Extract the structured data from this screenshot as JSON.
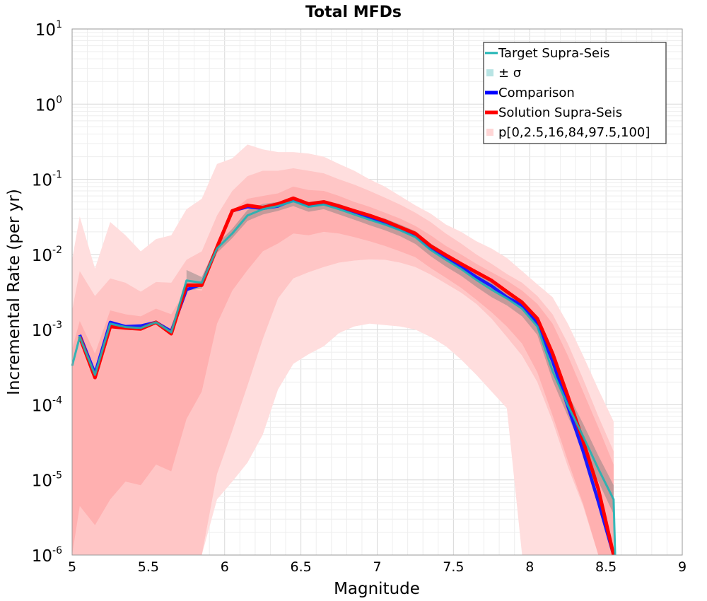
{
  "chart_data": {
    "type": "line",
    "title": "Total MFDs",
    "xlabel": "Magnitude",
    "ylabel": "Incremental Rate (per yr)",
    "xlim": [
      5,
      9
    ],
    "ylim_log10": [
      -6,
      1
    ],
    "y_scale": "log",
    "x_ticks": [
      "5",
      "5.5",
      "6",
      "6.5",
      "7",
      "7.5",
      "8",
      "8.5",
      "9"
    ],
    "y_tick_base": "10",
    "y_tick_exponents": [
      "1",
      "0",
      "-1",
      "-2",
      "-3",
      "-4",
      "-5",
      "-6"
    ],
    "grid": true,
    "legend_position": "top-right",
    "legend": [
      {
        "label": "Target Supra-Seis",
        "style": "line",
        "color": "#1fb4b4"
      },
      {
        "label": "± σ",
        "style": "band",
        "color": "#b8e4e4"
      },
      {
        "label": "Comparison",
        "style": "line",
        "color": "#0000ff"
      },
      {
        "label": "Solution Supra-Seis",
        "style": "line",
        "color": "#ff0000"
      },
      {
        "label": "p[0,2.5,16,84,97.5,100]",
        "style": "band",
        "color": "#ffd6d6"
      }
    ],
    "colors": {
      "target": "#1fb4b4",
      "sigma": "#7f7f7f",
      "comparison": "#1a1aff",
      "solution": "#ff0000",
      "p_outer": "#ffdede",
      "p_middle": "#ffc6c6",
      "p_inner": "#ffb0b0"
    },
    "x": [
      5.05,
      5.15,
      5.25,
      5.35,
      5.45,
      5.55,
      5.65,
      5.75,
      5.85,
      5.95,
      6.05,
      6.15,
      6.25,
      6.35,
      6.45,
      6.55,
      6.65,
      6.75,
      6.85,
      6.95,
      7.05,
      7.15,
      7.25,
      7.35,
      7.45,
      7.55,
      7.65,
      7.75,
      7.85,
      7.95,
      8.05,
      8.15,
      8.25,
      8.35,
      8.45,
      8.55
    ],
    "series": [
      {
        "name": "Target Supra-Seis",
        "key": "target",
        "x": [
          5.0,
          5.05,
          5.15,
          5.25,
          5.35,
          5.45,
          5.55,
          5.65,
          5.75,
          5.85,
          5.95,
          6.05,
          6.15,
          6.25,
          6.35,
          6.45,
          6.55,
          6.65,
          6.75,
          6.85,
          6.95,
          7.05,
          7.15,
          7.25,
          7.35,
          7.45,
          7.55,
          7.65,
          7.75,
          7.85,
          7.95,
          8.05,
          8.15,
          8.25,
          8.35,
          8.45,
          8.55,
          8.56
        ],
        "y": [
          0.00033,
          0.0008,
          0.00025,
          0.0012,
          0.00108,
          0.00105,
          0.00125,
          0.00092,
          0.0045,
          0.0042,
          0.012,
          0.019,
          0.033,
          0.04,
          0.044,
          0.051,
          0.043,
          0.046,
          0.04,
          0.034,
          0.029,
          0.025,
          0.021,
          0.017,
          0.0115,
          0.0085,
          0.0064,
          0.0046,
          0.0034,
          0.0026,
          0.0019,
          0.0011,
          0.00028,
          9.8e-05,
          3.8e-05,
          1.4e-05,
          5.5e-06,
          9e-07
        ]
      },
      {
        "name": "Comparison",
        "key": "comparison",
        "x": [
          5.05,
          5.15,
          5.25,
          5.35,
          5.45,
          5.55,
          5.65,
          5.75,
          5.85,
          5.95,
          6.05,
          6.15,
          6.25,
          6.35,
          6.45,
          6.55,
          6.65,
          6.75,
          6.85,
          6.95,
          7.05,
          7.15,
          7.25,
          7.35,
          7.45,
          7.55,
          7.65,
          7.75,
          7.85,
          7.95,
          8.05,
          8.15,
          8.25,
          8.35,
          8.45,
          8.55
        ],
        "y": [
          0.00085,
          0.00026,
          0.00125,
          0.0011,
          0.00112,
          0.00125,
          0.00095,
          0.0034,
          0.004,
          0.0125,
          0.038,
          0.043,
          0.041,
          0.044,
          0.053,
          0.045,
          0.048,
          0.043,
          0.037,
          0.031,
          0.026,
          0.022,
          0.018,
          0.012,
          0.0092,
          0.0068,
          0.005,
          0.0038,
          0.0027,
          0.0021,
          0.0012,
          0.00038,
          9.5e-05,
          2.4e-05,
          5.1e-06,
          9e-07
        ]
      },
      {
        "name": "Solution Supra-Seis",
        "key": "solution",
        "x": [
          5.05,
          5.15,
          5.25,
          5.35,
          5.45,
          5.55,
          5.65,
          5.75,
          5.85,
          5.95,
          6.05,
          6.15,
          6.25,
          6.35,
          6.45,
          6.55,
          6.65,
          6.75,
          6.85,
          6.95,
          7.05,
          7.15,
          7.25,
          7.35,
          7.45,
          7.55,
          7.65,
          7.75,
          7.85,
          7.95,
          8.05,
          8.15,
          8.25,
          8.35,
          8.45,
          8.55
        ],
        "y": [
          0.0008,
          0.00023,
          0.0011,
          0.00105,
          0.00102,
          0.00125,
          0.00088,
          0.0039,
          0.0039,
          0.0125,
          0.038,
          0.045,
          0.042,
          0.047,
          0.056,
          0.047,
          0.05,
          0.044,
          0.038,
          0.033,
          0.028,
          0.023,
          0.019,
          0.013,
          0.0098,
          0.0075,
          0.0058,
          0.0045,
          0.0032,
          0.0023,
          0.0014,
          0.00048,
          0.00013,
          3.3e-05,
          7.5e-06,
          9e-07
        ]
      }
    ],
    "sigma_band": {
      "x": [
        5.75,
        5.85,
        5.95,
        6.05,
        6.15,
        6.25,
        6.35,
        6.45,
        6.55,
        6.65,
        6.75,
        6.85,
        6.95,
        7.05,
        7.15,
        7.25,
        7.35,
        7.45,
        7.55,
        7.65,
        7.75,
        7.85,
        7.95,
        8.05,
        8.15,
        8.25,
        8.35,
        8.45,
        8.55
      ],
      "low": [
        0.0033,
        0.0035,
        0.0105,
        0.0165,
        0.028,
        0.034,
        0.038,
        0.044,
        0.037,
        0.04,
        0.034,
        0.029,
        0.0245,
        0.021,
        0.0175,
        0.0138,
        0.0095,
        0.0069,
        0.0052,
        0.0037,
        0.0027,
        0.0021,
        0.0015,
        0.00085,
        0.00021,
        7e-05,
        2.6e-05,
        9.5e-06,
        3.5e-06
      ],
      "high": [
        0.0062,
        0.005,
        0.0138,
        0.022,
        0.039,
        0.047,
        0.05,
        0.058,
        0.05,
        0.053,
        0.047,
        0.04,
        0.034,
        0.03,
        0.025,
        0.0205,
        0.014,
        0.0105,
        0.0079,
        0.0058,
        0.0043,
        0.0032,
        0.0025,
        0.0014,
        0.00038,
        0.00014,
        5.6e-05,
        2.1e-05,
        8.5e-06
      ]
    },
    "percentile_bands": [
      {
        "level": "outer",
        "x": [
          5.0,
          5.05,
          5.15,
          5.25,
          5.35,
          5.45,
          5.55,
          5.65,
          5.75,
          5.85,
          5.95,
          6.05,
          6.15,
          6.25,
          6.35,
          6.45,
          6.55,
          6.65,
          6.75,
          6.85,
          6.95,
          7.05,
          7.15,
          7.25,
          7.35,
          7.45,
          7.55,
          7.65,
          7.75,
          7.85,
          7.95,
          8.05,
          8.15,
          8.25,
          8.35,
          8.45,
          8.55
        ],
        "low": [
          1e-06,
          1e-06,
          1e-06,
          1e-06,
          1e-06,
          1e-06,
          1e-06,
          1e-06,
          1e-06,
          1e-06,
          5.5e-06,
          9.5e-06,
          1.7e-05,
          4e-05,
          0.00016,
          0.00035,
          0.00047,
          0.0006,
          0.0009,
          0.0011,
          0.0012,
          0.00115,
          0.0011,
          0.001,
          0.0008,
          0.0006,
          0.0004,
          0.00025,
          0.00015,
          9e-05,
          1e-06,
          1e-06,
          1e-06,
          1e-06,
          1e-06,
          1e-06,
          1e-06
        ],
        "high": [
          0.0085,
          0.032,
          0.0065,
          0.027,
          0.018,
          0.011,
          0.016,
          0.018,
          0.04,
          0.055,
          0.16,
          0.19,
          0.29,
          0.25,
          0.23,
          0.23,
          0.22,
          0.2,
          0.16,
          0.13,
          0.1,
          0.08,
          0.06,
          0.045,
          0.035,
          0.025,
          0.02,
          0.015,
          0.012,
          0.009,
          0.006,
          0.004,
          0.0027,
          0.0012,
          0.00045,
          0.00016,
          6e-05
        ]
      },
      {
        "level": "middle",
        "x": [
          5.0,
          5.05,
          5.15,
          5.25,
          5.35,
          5.45,
          5.55,
          5.65,
          5.75,
          5.85,
          5.95,
          6.05,
          6.15,
          6.25,
          6.35,
          6.45,
          6.55,
          6.65,
          6.75,
          6.85,
          6.95,
          7.05,
          7.15,
          7.25,
          7.35,
          7.45,
          7.55,
          7.65,
          7.75,
          7.85,
          7.95,
          8.05,
          8.15,
          8.25,
          8.35,
          8.45,
          8.55
        ],
        "low": [
          1e-06,
          1e-06,
          1e-06,
          1e-06,
          1e-06,
          1e-06,
          1e-06,
          1e-06,
          1e-06,
          1e-06,
          1.2e-05,
          4.5e-05,
          0.00018,
          0.00075,
          0.0026,
          0.0048,
          0.0058,
          0.0068,
          0.0078,
          0.0083,
          0.0086,
          0.0085,
          0.0078,
          0.0068,
          0.0054,
          0.0041,
          0.0031,
          0.0022,
          0.0014,
          0.0008,
          0.00045,
          0.0002,
          6e-05,
          1.5e-05,
          4.5e-06,
          1e-06,
          1e-06
        ],
        "high": [
          0.0018,
          0.006,
          0.0028,
          0.0048,
          0.0042,
          0.0032,
          0.0043,
          0.0042,
          0.0085,
          0.011,
          0.033,
          0.07,
          0.11,
          0.13,
          0.13,
          0.14,
          0.13,
          0.12,
          0.1,
          0.085,
          0.07,
          0.057,
          0.046,
          0.036,
          0.027,
          0.019,
          0.014,
          0.01,
          0.0075,
          0.0055,
          0.0042,
          0.0028,
          0.0016,
          0.00065,
          0.00022,
          7e-05,
          2.4e-05
        ]
      },
      {
        "level": "inner",
        "x": [
          5.0,
          5.05,
          5.15,
          5.25,
          5.35,
          5.45,
          5.55,
          5.65,
          5.75,
          5.85,
          5.95,
          6.05,
          6.15,
          6.25,
          6.35,
          6.45,
          6.55,
          6.65,
          6.75,
          6.85,
          6.95,
          7.05,
          7.15,
          7.25,
          7.35,
          7.45,
          7.55,
          7.65,
          7.75,
          7.85,
          7.95,
          8.05,
          8.15,
          8.25,
          8.35,
          8.45,
          8.55
        ],
        "low": [
          1e-06,
          4.5e-06,
          2.5e-06,
          5.5e-06,
          9.5e-06,
          8.5e-06,
          1.6e-05,
          1.3e-05,
          6.5e-05,
          0.00015,
          0.0012,
          0.0033,
          0.0062,
          0.011,
          0.014,
          0.019,
          0.018,
          0.02,
          0.019,
          0.017,
          0.015,
          0.013,
          0.011,
          0.0092,
          0.0066,
          0.0049,
          0.0036,
          0.0025,
          0.0017,
          0.0011,
          0.00065,
          0.00027,
          7.2e-05,
          1.8e-05,
          4.8e-06,
          1e-06,
          1e-06
        ],
        "high": [
          0.00055,
          0.0013,
          0.00048,
          0.0018,
          0.0016,
          0.0015,
          0.0019,
          0.0016,
          0.0035,
          0.0033,
          0.015,
          0.038,
          0.055,
          0.06,
          0.065,
          0.08,
          0.072,
          0.07,
          0.06,
          0.05,
          0.043,
          0.036,
          0.03,
          0.024,
          0.018,
          0.013,
          0.01,
          0.0075,
          0.0058,
          0.0045,
          0.0033,
          0.0022,
          0.0012,
          0.00045,
          0.00015,
          5e-05,
          1.6e-05
        ]
      }
    ]
  }
}
